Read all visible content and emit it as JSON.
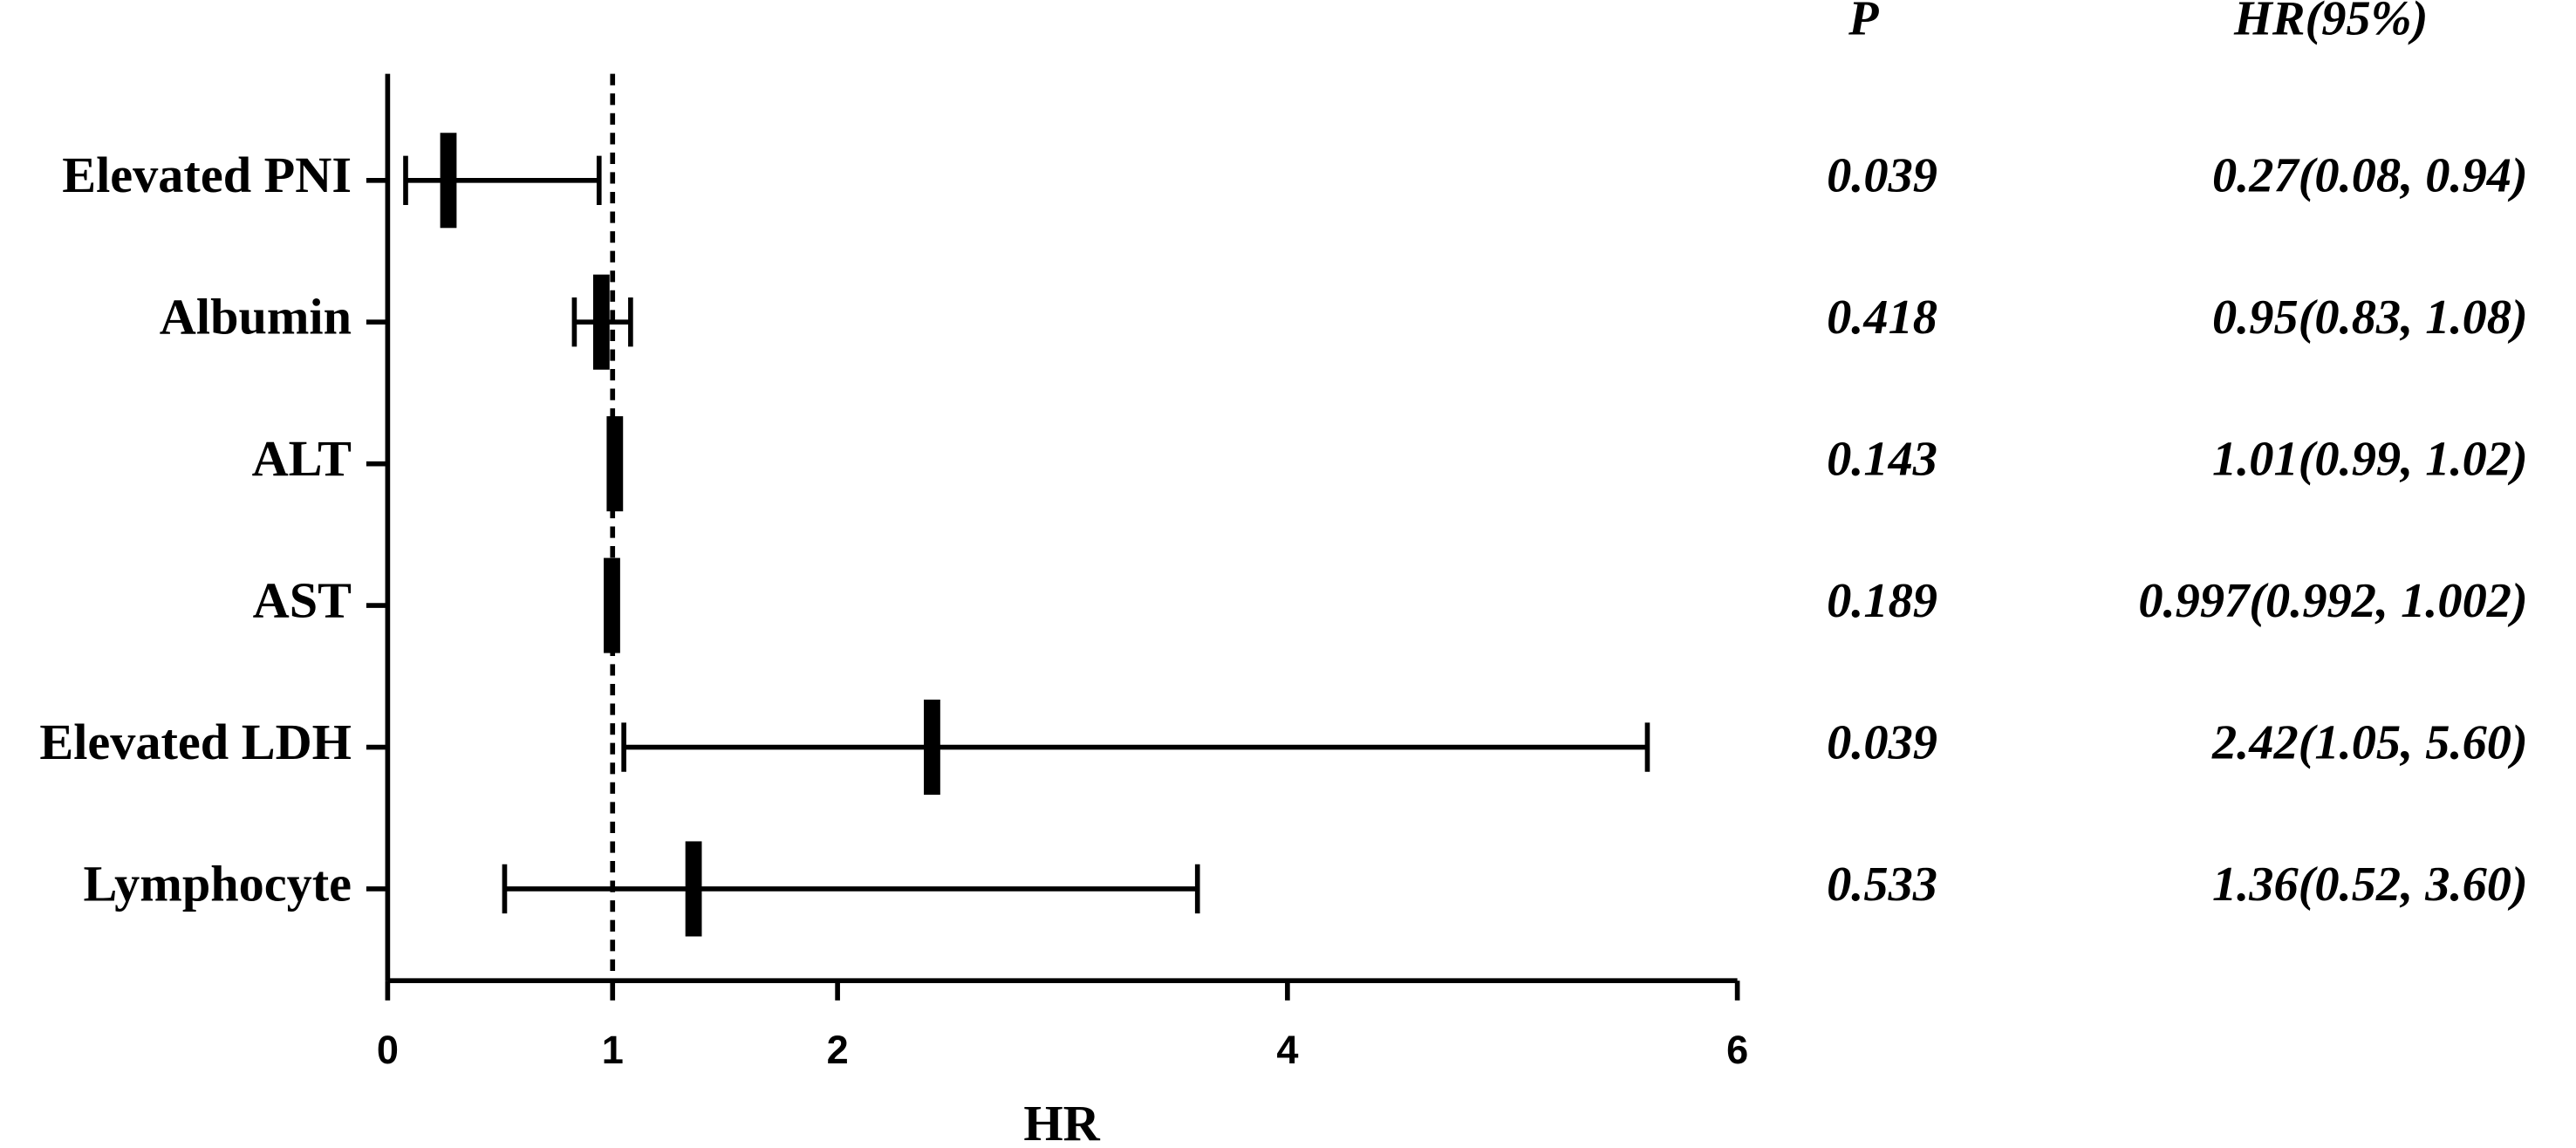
{
  "chart_data": {
    "type": "forest",
    "categories": [
      "Elevated PNI",
      "Albumin",
      "ALT",
      "AST",
      "Elevated LDH",
      "Lymphocyte"
    ],
    "hr": [
      0.27,
      0.95,
      1.01,
      0.997,
      2.42,
      1.36
    ],
    "lower": [
      0.08,
      0.83,
      0.99,
      0.992,
      1.05,
      0.52
    ],
    "upper": [
      0.94,
      1.08,
      1.02,
      1.002,
      5.6,
      3.6
    ],
    "p_header": "P",
    "p_values": [
      0.039,
      0.418,
      0.143,
      0.189,
      0.039,
      0.533
    ],
    "hr_header": "HR(95%)",
    "hr_labels": [
      "0.27(0.08, 0.94)",
      "0.95(0.83, 1.08)",
      "1.01(0.99, 1.02)",
      "0.997(0.992, 1.002)",
      "2.42(1.05, 5.60)",
      "1.36(0.52, 3.60)"
    ],
    "x_label": "HR",
    "xlim": [
      0,
      6
    ],
    "xticks": [
      0,
      1,
      2,
      4,
      6
    ],
    "reference_line": 1,
    "color": "#000000"
  }
}
